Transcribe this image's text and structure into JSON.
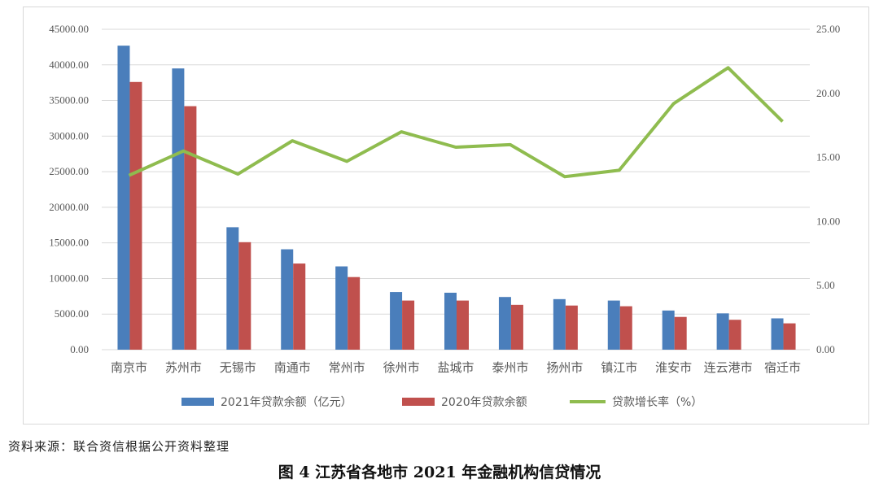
{
  "chart_data": {
    "type": "bar",
    "categories": [
      "南京市",
      "苏州市",
      "无锡市",
      "南通市",
      "常州市",
      "徐州市",
      "盐城市",
      "泰州市",
      "扬州市",
      "镇江市",
      "淮安市",
      "连云港市",
      "宿迁市"
    ],
    "series": [
      {
        "name": "2021年贷款余额（亿元）",
        "kind": "bar",
        "axis": "left",
        "color": "#4a7ebb",
        "values": [
          42700,
          39500,
          17200,
          14100,
          11700,
          8100,
          8000,
          7400,
          7100,
          6900,
          5500,
          5100,
          4400
        ]
      },
      {
        "name": "2020年贷款余额",
        "kind": "bar",
        "axis": "left",
        "color": "#c0504d",
        "values": [
          37600,
          34200,
          15100,
          12100,
          10200,
          6900,
          6900,
          6300,
          6200,
          6100,
          4600,
          4200,
          3700
        ]
      },
      {
        "name": "贷款增长率（%）",
        "kind": "line",
        "axis": "right",
        "color": "#8fbc4f",
        "values": [
          13.6,
          15.5,
          13.7,
          16.3,
          14.7,
          17.0,
          15.8,
          16.0,
          13.5,
          14.0,
          19.2,
          22.0,
          17.8
        ]
      }
    ],
    "y_left": {
      "min": 0,
      "max": 45000,
      "step": 5000,
      "decimals": 2
    },
    "y_right": {
      "min": 0,
      "max": 25,
      "step": 5,
      "decimals": 2
    },
    "grid": true,
    "legend_position": "bottom"
  },
  "source_note": "资料来源：联合资信根据公开资料整理",
  "caption": "图 4    江苏省各地市 2021 年金融机构信贷情况"
}
